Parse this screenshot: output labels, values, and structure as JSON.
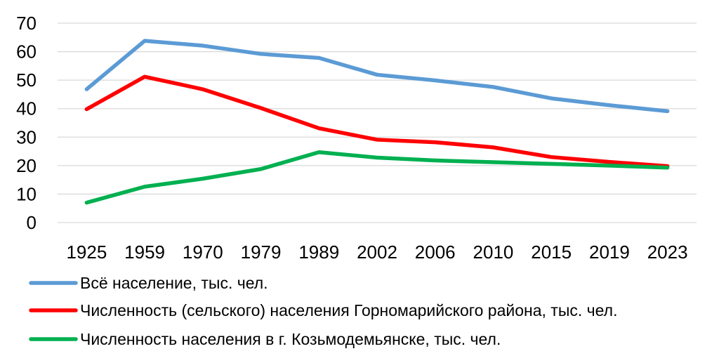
{
  "chart_data": {
    "type": "line",
    "x": [
      "1925",
      "1959",
      "1970",
      "1979",
      "1989",
      "2002",
      "2006",
      "2010",
      "2015",
      "2019",
      "2023"
    ],
    "ylim": [
      0,
      70
    ],
    "yticks": [
      "0",
      "10",
      "20",
      "30",
      "40",
      "50",
      "60",
      "70"
    ],
    "grid": true,
    "legend_position": "bottom-left",
    "series": [
      {
        "name": "Всё население, тыс. чел.",
        "color": "#5b9bd5",
        "values": [
          46.8,
          63.8,
          62.1,
          59.2,
          57.8,
          51.9,
          49.9,
          47.6,
          43.6,
          41.2,
          39.1
        ]
      },
      {
        "name": "Численность (сельского) населения Горномарийского района, тыс. чел.",
        "color": "#ff0000",
        "values": [
          39.8,
          51.2,
          46.8,
          40.2,
          33.1,
          29.1,
          28.2,
          26.4,
          23.0,
          21.3,
          19.8
        ]
      },
      {
        "name": "Численность населения в г. Козьмодемьянске, тыс. чел.",
        "color": "#00b050",
        "values": [
          7.0,
          12.6,
          15.4,
          18.8,
          24.7,
          22.8,
          21.8,
          21.2,
          20.6,
          20.0,
          19.3
        ]
      }
    ]
  }
}
